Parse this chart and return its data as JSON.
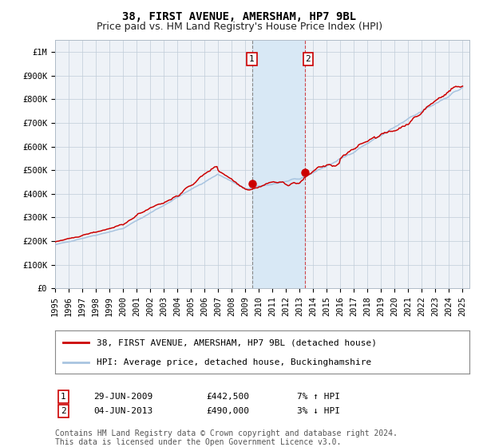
{
  "title": "38, FIRST AVENUE, AMERSHAM, HP7 9BL",
  "subtitle": "Price paid vs. HM Land Registry's House Price Index (HPI)",
  "ylim": [
    0,
    1050000
  ],
  "xlim_start": 1995.0,
  "xlim_end": 2025.5,
  "hpi_color": "#a8c4e0",
  "price_color": "#cc0000",
  "marker_color": "#cc0000",
  "background_color": "#eef2f7",
  "highlight_color": "#d8e8f5",
  "gridcolor": "#c0ccd8",
  "transaction1_date": 2009.49,
  "transaction1_price": 442500,
  "transaction2_date": 2013.42,
  "transaction2_price": 490000,
  "legend_line1": "38, FIRST AVENUE, AMERSHAM, HP7 9BL (detached house)",
  "legend_line2": "HPI: Average price, detached house, Buckinghamshire",
  "table_row1_num": "1",
  "table_row1_date": "29-JUN-2009",
  "table_row1_price": "£442,500",
  "table_row1_hpi": "7% ↑ HPI",
  "table_row2_num": "2",
  "table_row2_date": "04-JUN-2013",
  "table_row2_price": "£490,000",
  "table_row2_hpi": "3% ↓ HPI",
  "footnote": "Contains HM Land Registry data © Crown copyright and database right 2024.\nThis data is licensed under the Open Government Licence v3.0.",
  "title_fontsize": 10,
  "subtitle_fontsize": 9,
  "tick_fontsize": 7.5,
  "legend_fontsize": 8,
  "table_fontsize": 8,
  "footnote_fontsize": 7
}
